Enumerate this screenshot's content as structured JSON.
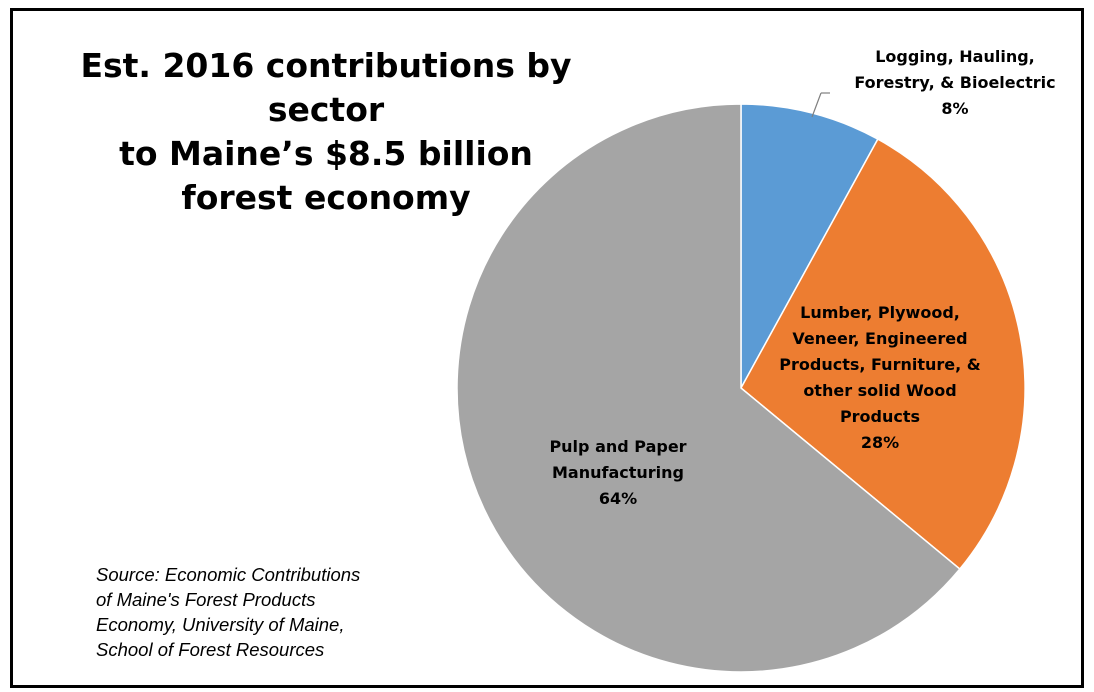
{
  "chart_data": {
    "type": "pie",
    "title_lines": [
      "Est. 2016 contributions by sector",
      "to Maine’s $8.5 billion",
      "forest economy"
    ],
    "slices": [
      {
        "label_lines": [
          "Logging, Hauling,",
          "Forestry, & Bioelectric"
        ],
        "pct_label": "8%",
        "value": 8,
        "color": "#5B9BD5"
      },
      {
        "label_lines": [
          "Lumber, Plywood,",
          "Veneer, Engineered",
          "Products, Furniture, &",
          "other solid Wood",
          "Products"
        ],
        "pct_label": "28%",
        "value": 28,
        "color": "#ED7D31"
      },
      {
        "label_lines": [
          "Pulp and Paper",
          "Manufacturing"
        ],
        "pct_label": "64%",
        "value": 64,
        "color": "#A5A5A5"
      }
    ],
    "start_angle_deg": 0,
    "direction": "clockwise",
    "legend": "none",
    "leader_line_color": "#7F7F7F"
  },
  "source_lines": [
    "Source: Economic Contributions",
    "of Maine's Forest Products",
    "Economy, University of Maine,",
    "School of Forest Resources"
  ]
}
